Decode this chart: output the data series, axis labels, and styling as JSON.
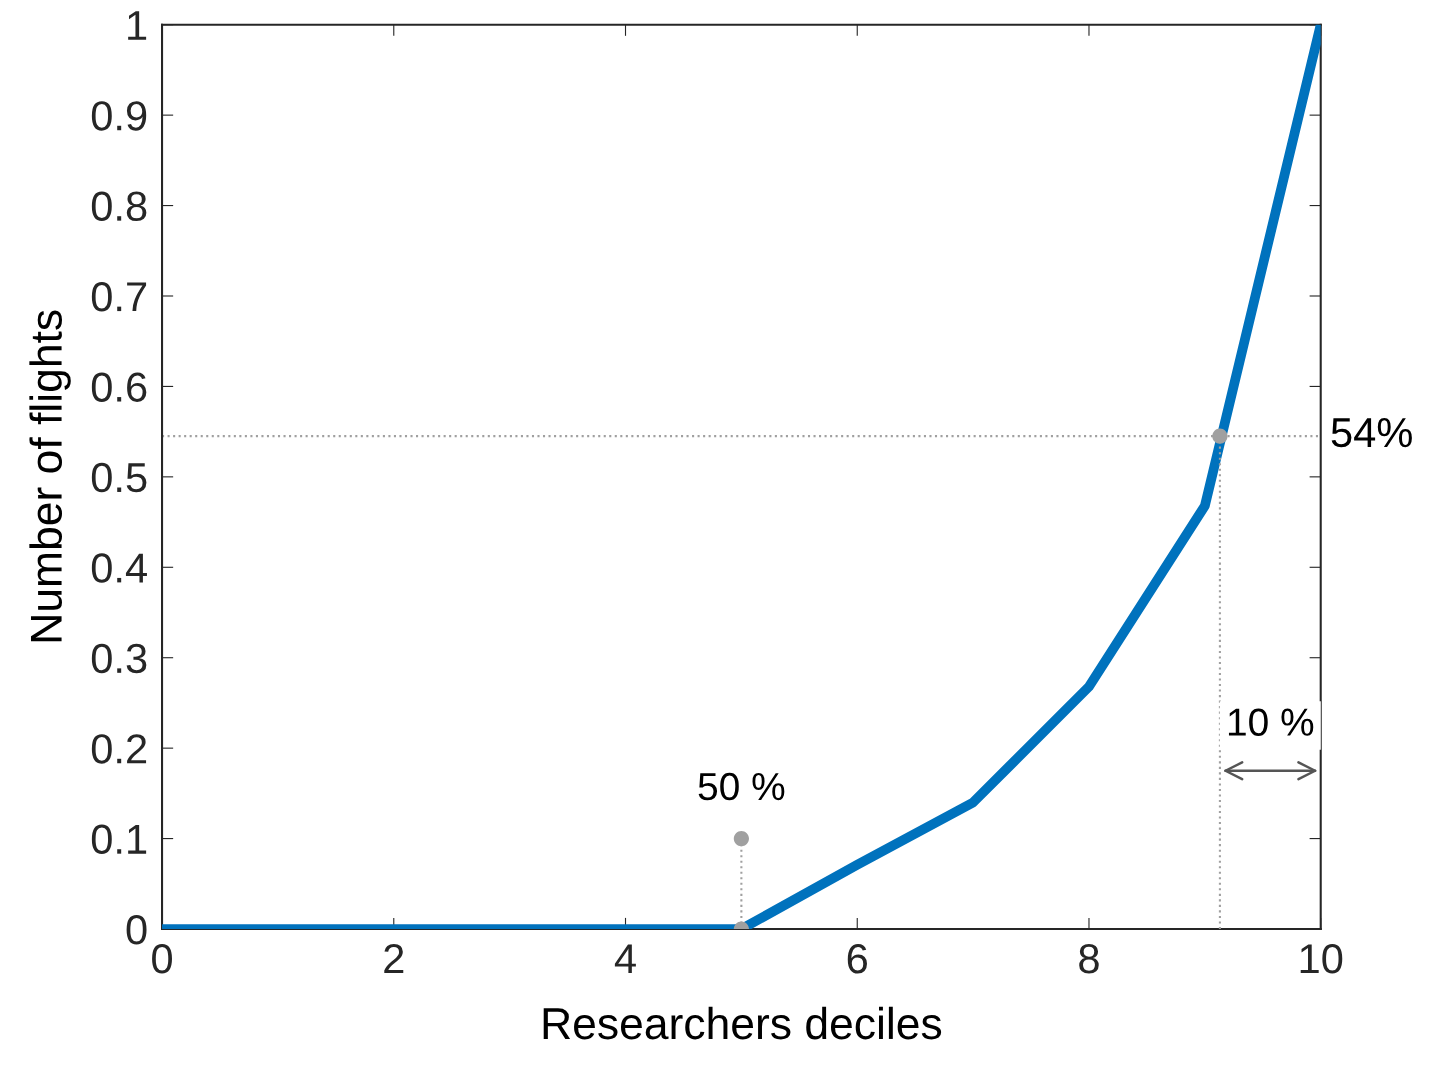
{
  "chart_data": {
    "type": "line",
    "xlabel": "Researchers deciles",
    "ylabel": "Number of flights",
    "xlim": [
      0,
      10
    ],
    "ylim": [
      0,
      1
    ],
    "xticks": [
      0,
      2,
      4,
      6,
      8,
      10
    ],
    "yticks": [
      0,
      0.1,
      0.2,
      0.3,
      0.4,
      0.5,
      0.6,
      0.7,
      0.8,
      0.9,
      1
    ],
    "grid": false,
    "series": [
      {
        "color": "#0072bd",
        "x": [
          0,
          1,
          2,
          3,
          4,
          5,
          6,
          7,
          8,
          9,
          10
        ],
        "values": [
          0,
          0,
          0,
          0,
          0,
          0,
          0.071,
          0.14,
          0.268,
          0.468,
          1
        ],
        "marker": "none",
        "line_style": "solid"
      },
      {
        "type": "line",
        "color": "#a0a0a0",
        "x": [
          5,
          5
        ],
        "values": [
          0,
          0.1
        ],
        "marker": "none",
        "line_style": "dotted"
      },
      {
        "type": "line",
        "color": "#a0a0a0",
        "x": [
          9.13,
          9.13
        ],
        "values": [
          0,
          0.545
        ],
        "marker": "none",
        "line_style": "dotted"
      },
      {
        "type": "scatter",
        "color": "#a0a0a0",
        "x": [
          5,
          5,
          9.13
        ],
        "values": [
          0,
          0.1,
          0.545
        ],
        "marker": "circle"
      }
    ],
    "ref_lines": [
      {
        "axis": "y",
        "value": 0.545,
        "label": "54%",
        "color": "#a0a0a0",
        "line_style": "dotted"
      }
    ],
    "annotations": [
      {
        "text": "50 %",
        "x": 5,
        "y": 0.1
      },
      {
        "text": "10 %",
        "x": 9.13,
        "y": 0.175
      }
    ]
  }
}
